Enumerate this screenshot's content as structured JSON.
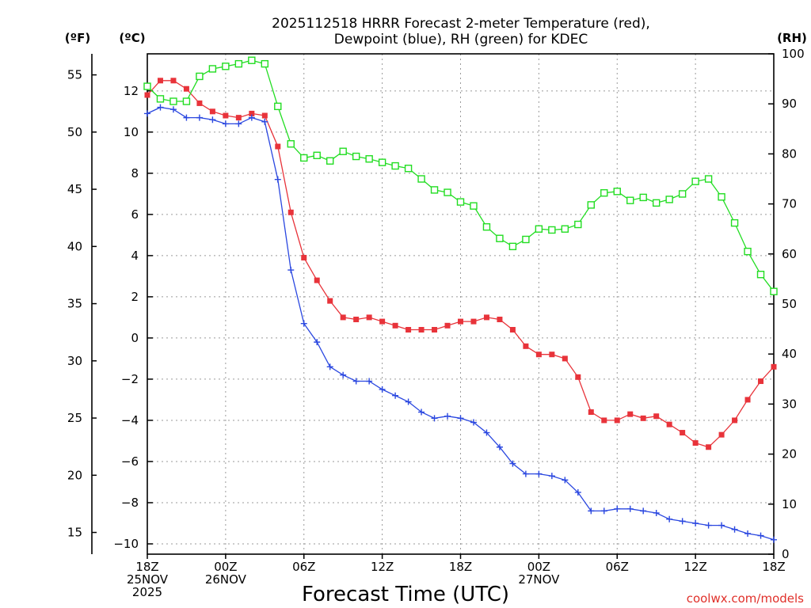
{
  "chart_data": {
    "type": "line",
    "title_lines": [
      "2025112518 HRRR Forecast 2-meter Temperature (red),",
      "Dewpoint (blue), RH (green) for KDEC"
    ],
    "xlabel": "Forecast Time (UTC)",
    "credit": "coolwx.com/models",
    "x_unit": "hours since 25NOV2025 18Z",
    "xlim": [
      0,
      48
    ],
    "x_ticks": [
      {
        "x": 0,
        "lines": [
          "18Z",
          "25NOV",
          "2025"
        ]
      },
      {
        "x": 6,
        "lines": [
          "00Z",
          "26NOV"
        ]
      },
      {
        "x": 12,
        "lines": [
          "06Z"
        ]
      },
      {
        "x": 18,
        "lines": [
          "12Z"
        ]
      },
      {
        "x": 24,
        "lines": [
          "18Z"
        ]
      },
      {
        "x": 30,
        "lines": [
          "00Z",
          "27NOV"
        ]
      },
      {
        "x": 36,
        "lines": [
          "06Z"
        ]
      },
      {
        "x": 42,
        "lines": [
          "12Z"
        ]
      },
      {
        "x": 48,
        "lines": [
          "18Z"
        ]
      }
    ],
    "axes": {
      "celsius": {
        "label": "(ºC)",
        "ylim": [
          -10.5,
          13.8
        ],
        "ticks": [
          -10,
          -8,
          -6,
          -4,
          -2,
          0,
          2,
          4,
          6,
          8,
          10,
          12
        ],
        "tick_labels": [
          "−10",
          "−8",
          "−6",
          "−4",
          "−2",
          "0",
          "2",
          "4",
          "6",
          "8",
          "10",
          "12"
        ]
      },
      "fahrenheit": {
        "label": "(ºF)",
        "ticks": [
          15,
          20,
          25,
          30,
          35,
          40,
          45,
          50,
          55
        ],
        "tick_labels": [
          "15",
          "20",
          "25",
          "30",
          "35",
          "40",
          "45",
          "50",
          "55"
        ]
      },
      "rh": {
        "label": "(RH)",
        "ylim": [
          0,
          100
        ],
        "ticks": [
          0,
          10,
          20,
          30,
          40,
          50,
          60,
          70,
          80,
          90,
          100
        ],
        "tick_labels": [
          "0",
          "10",
          "20",
          "30",
          "40",
          "50",
          "60",
          "70",
          "80",
          "90",
          "100"
        ]
      }
    },
    "series": [
      {
        "name": "2-meter Temperature",
        "unit": "°C",
        "color": "#e8333a",
        "marker": "filled-square",
        "values": [
          11.8,
          12.5,
          12.5,
          12.1,
          11.4,
          11.0,
          10.8,
          10.7,
          10.9,
          10.8,
          9.3,
          6.1,
          3.9,
          2.8,
          1.8,
          1.0,
          0.9,
          1.0,
          0.8,
          0.6,
          0.4,
          0.4,
          0.4,
          0.6,
          0.8,
          0.8,
          1.0,
          0.9,
          0.4,
          -0.4,
          -0.8,
          -0.8,
          -1.0,
          -1.9,
          -3.6,
          -4.0,
          -4.0,
          -3.7,
          -3.9,
          -3.8,
          -4.2,
          -4.6,
          -5.1,
          -5.3,
          -4.7,
          -4.0,
          -3.0,
          -2.1,
          -1.4
        ]
      },
      {
        "name": "Dewpoint",
        "unit": "°C",
        "color": "#2a47e0",
        "marker": "plus",
        "values": [
          10.9,
          11.2,
          11.1,
          10.7,
          10.7,
          10.6,
          10.4,
          10.4,
          10.7,
          10.5,
          7.7,
          3.3,
          0.7,
          -0.2,
          -1.4,
          -1.8,
          -2.1,
          -2.1,
          -2.5,
          -2.8,
          -3.1,
          -3.6,
          -3.9,
          -3.8,
          -3.9,
          -4.1,
          -4.6,
          -5.3,
          -6.1,
          -6.6,
          -6.6,
          -6.7,
          -6.9,
          -7.5,
          -8.4,
          -8.4,
          -8.3,
          -8.3,
          -8.4,
          -8.5,
          -8.8,
          -8.9,
          -9.0,
          -9.1,
          -9.1,
          -9.3,
          -9.5,
          -9.6,
          -9.8
        ]
      },
      {
        "name": "RH",
        "unit": "%",
        "color": "#22dd22",
        "marker": "open-square",
        "values": [
          93.5,
          91.0,
          90.5,
          90.5,
          95.5,
          97.0,
          97.5,
          98.0,
          98.7,
          98.0,
          89.5,
          82.0,
          79.2,
          79.7,
          78.6,
          80.5,
          79.5,
          79.0,
          78.3,
          77.6,
          77.1,
          75.0,
          72.8,
          72.3,
          70.4,
          69.6,
          65.4,
          63.1,
          61.5,
          62.9,
          65.0,
          64.8,
          65.0,
          65.9,
          69.8,
          72.2,
          72.5,
          70.7,
          71.3,
          70.2,
          70.9,
          72.0,
          74.5,
          75.0,
          71.4,
          66.2,
          60.5,
          55.9,
          52.5
        ]
      }
    ]
  }
}
